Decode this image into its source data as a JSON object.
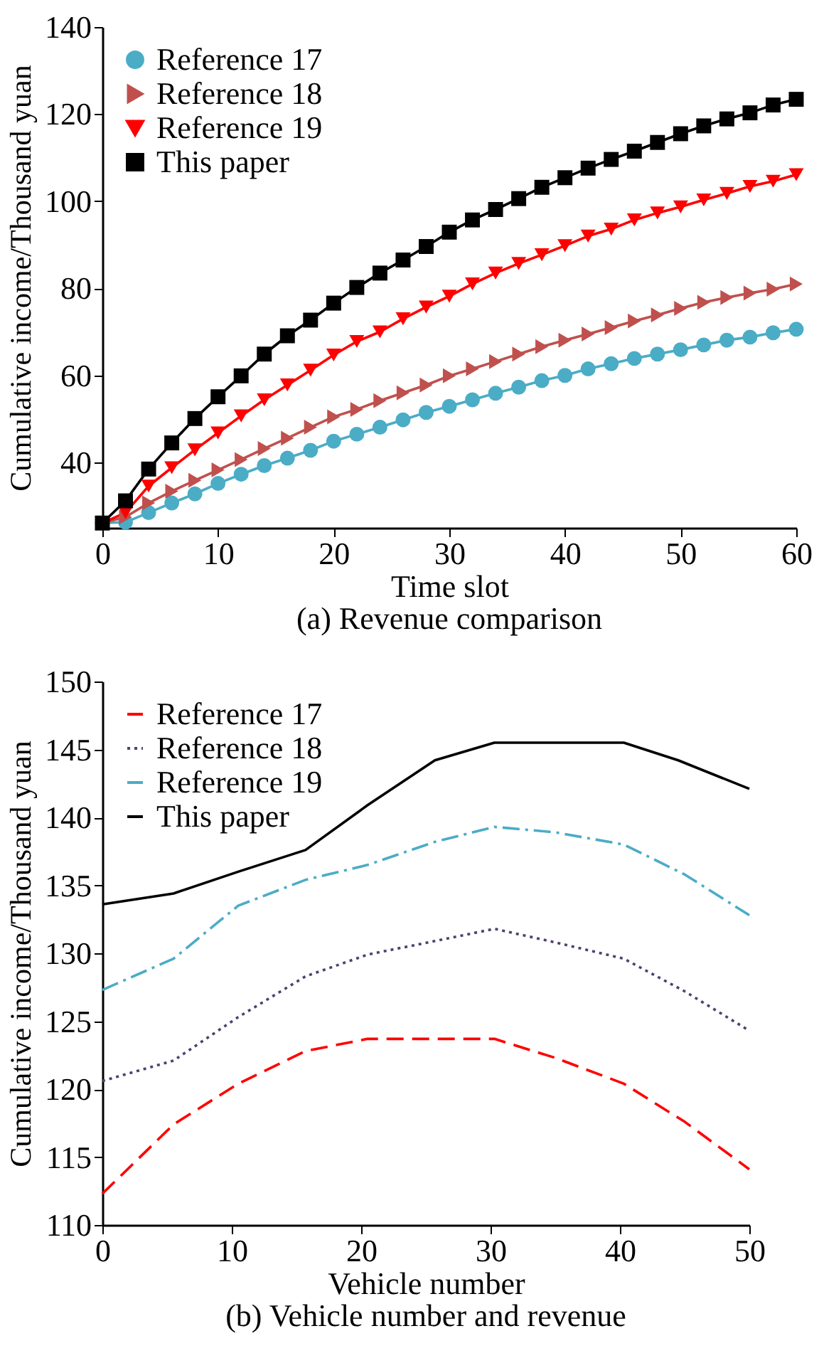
{
  "chart_data": [
    {
      "type": "line",
      "title": "(a) Revenue comparison",
      "xlabel": "Time slot",
      "ylabel": "Cumulative income/Thousand yuan",
      "x": [
        0,
        2,
        4,
        6,
        8,
        10,
        12,
        14,
        16,
        18,
        20,
        22,
        24,
        26,
        28,
        30,
        32,
        34,
        36,
        38,
        40,
        42,
        44,
        46,
        48,
        50,
        52,
        54,
        56,
        58,
        60
      ],
      "xlim": [
        0,
        60
      ],
      "xticks": [
        0,
        10,
        20,
        30,
        40,
        50,
        60
      ],
      "ylim": [
        25,
        140
      ],
      "yticks": [
        40,
        60,
        80,
        100,
        120,
        140
      ],
      "grid": false,
      "legend": "top left",
      "series": [
        {
          "name": "Reference 17",
          "color": "#4bacc6",
          "marker": "circle",
          "values": [
            26.1,
            26.3,
            28.5,
            30.7,
            32.8,
            35.2,
            37.3,
            39.3,
            41.0,
            42.8,
            44.9,
            46.5,
            48.1,
            49.8,
            51.5,
            52.9,
            54.4,
            55.9,
            57.3,
            58.8,
            60.0,
            61.5,
            62.7,
            63.9,
            64.9,
            65.9,
            67.0,
            68.1,
            68.8,
            69.8,
            70.6
          ]
        },
        {
          "name": "Reference 18",
          "color": "#c0504d",
          "marker": "triangle-right",
          "values": [
            26.1,
            27.5,
            30.7,
            33.4,
            35.9,
            38.3,
            40.7,
            43.2,
            45.6,
            48.1,
            50.5,
            52.2,
            54.2,
            56.0,
            57.8,
            59.9,
            61.5,
            63.2,
            64.9,
            66.6,
            68.1,
            69.5,
            71.0,
            72.5,
            73.9,
            75.4,
            76.8,
            77.9,
            78.9,
            79.8,
            81.0
          ]
        },
        {
          "name": "Reference 19",
          "color": "#ff0000",
          "marker": "triangle-down",
          "values": [
            26.1,
            28.5,
            34.6,
            38.8,
            42.9,
            46.8,
            50.7,
            54.4,
            57.8,
            61.2,
            64.7,
            67.8,
            70.0,
            73.0,
            75.7,
            78.2,
            81.0,
            83.5,
            85.7,
            87.7,
            89.8,
            92.0,
            93.6,
            95.7,
            97.3,
            98.7,
            100.3,
            101.8,
            103.4,
            104.6,
            106.1
          ]
        },
        {
          "name": "This paper",
          "color": "#000000",
          "marker": "square",
          "values": [
            26.1,
            31.2,
            38.5,
            44.5,
            50.1,
            55.1,
            59.9,
            64.9,
            69.1,
            72.7,
            76.6,
            80.2,
            83.5,
            86.5,
            89.6,
            92.9,
            95.7,
            98.1,
            100.6,
            103.2,
            105.4,
            107.6,
            109.6,
            111.5,
            113.5,
            115.5,
            117.3,
            118.9,
            120.3,
            122.1,
            123.4
          ]
        }
      ]
    },
    {
      "type": "line",
      "title": "(b) Vehicle number and revenue",
      "xlabel": "Vehicle number",
      "ylabel": "Cumulative income/Thousand yuan",
      "xlim": [
        0,
        50
      ],
      "xticks": [
        0,
        10,
        20,
        30,
        40,
        50
      ],
      "ylim": [
        110,
        150
      ],
      "yticks": [
        110,
        115,
        120,
        125,
        130,
        135,
        140,
        145,
        150
      ],
      "grid": false,
      "legend": "top left",
      "marker": "none",
      "series": [
        {
          "name": "Reference 17",
          "color": "#ff0000",
          "line_style": "dashed",
          "x": [
            0,
            5.5,
            10.5,
            15.7,
            20.5,
            30.3,
            35,
            40.3,
            45,
            50
          ],
          "values": [
            112.3,
            117.4,
            120.4,
            122.8,
            123.7,
            123.7,
            122.3,
            120.4,
            117.6,
            114.1
          ]
        },
        {
          "name": "Reference 18",
          "color": "#504070",
          "line_style": "dotted",
          "x": [
            0,
            5.5,
            10.5,
            15.7,
            20.5,
            25.7,
            30.3,
            35,
            40.3,
            45,
            50
          ],
          "values": [
            120.6,
            122.1,
            125.3,
            128.3,
            129.9,
            130.9,
            131.8,
            130.8,
            129.6,
            127.2,
            124.3
          ]
        },
        {
          "name": "Reference 19",
          "color": "#4bacc6",
          "line_style": "dashdot",
          "x": [
            0,
            5.5,
            10.5,
            15.7,
            20.5,
            25.7,
            30.3,
            35,
            40.3,
            45,
            50
          ],
          "values": [
            127.3,
            129.6,
            133.5,
            135.4,
            136.5,
            138.2,
            139.3,
            138.9,
            138.0,
            135.8,
            132.8
          ]
        },
        {
          "name": "This paper",
          "color": "#000000",
          "line_style": "solid",
          "x": [
            0,
            5.5,
            10.5,
            15.7,
            20.5,
            25.7,
            30.3,
            40.3,
            44.5,
            50
          ],
          "values": [
            133.6,
            134.4,
            136.0,
            137.6,
            140.9,
            144.2,
            145.5,
            145.5,
            144.2,
            142.1
          ]
        }
      ]
    }
  ]
}
